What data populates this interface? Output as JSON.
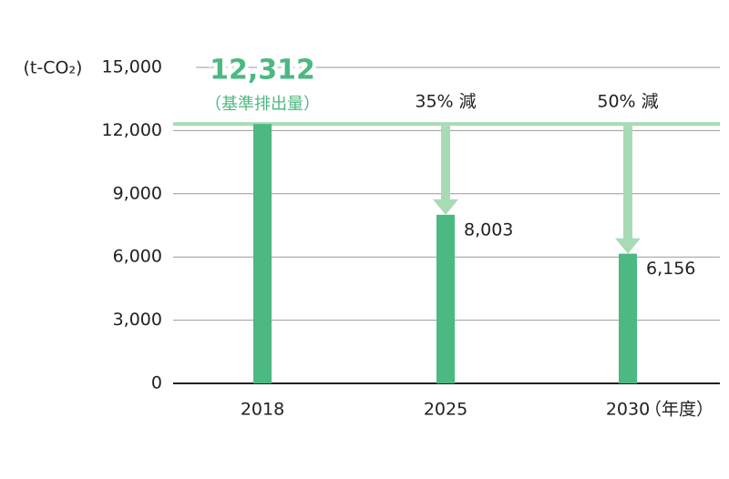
{
  "chart_data": {
    "type": "bar",
    "y_unit": "(t-CO₂)",
    "x_unit": "（年度）",
    "categories": [
      "2018",
      "2025",
      "2030"
    ],
    "values": [
      12312,
      8003,
      6156
    ],
    "value_labels": [
      "12,312",
      "8,003",
      "6,156"
    ],
    "baseline_label": "（基準排出量）",
    "reduction_labels": [
      null,
      "35% 減",
      "50% 減"
    ],
    "color": "#4cb882",
    "baseline_color": "#a8dbb5",
    "ylim": [
      0,
      15000
    ],
    "yticks": [
      {
        "value": 0,
        "label": "0"
      },
      {
        "value": 3000,
        "label": "3,000"
      },
      {
        "value": 6000,
        "label": "6,000"
      },
      {
        "value": 9000,
        "label": "9,000"
      },
      {
        "value": 12000,
        "label": "12,000"
      },
      {
        "value": 15000,
        "label": "15,000"
      }
    ],
    "grid": true
  }
}
